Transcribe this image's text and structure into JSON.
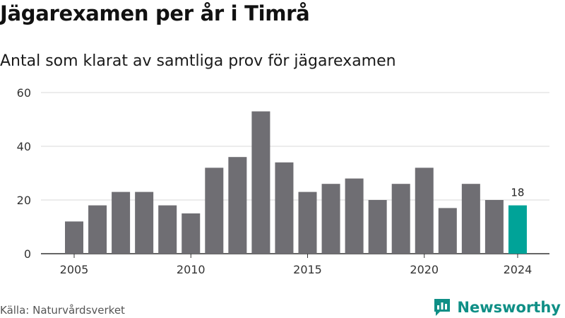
{
  "header": {
    "title": "Jägarexamen per år i Timrå",
    "subtitle": "Antal som klarat av samtliga prov för jägarexamen"
  },
  "footer": {
    "source": "Källa: Naturvårdsverket",
    "brand": "Newsworthy",
    "brand_icon": "newsworthy-logo-icon"
  },
  "colors": {
    "bar": "#6f6e73",
    "highlight": "#00a398",
    "grid": "#d9d9d9",
    "axis": "#333333",
    "brand": "#0f8f86"
  },
  "chart_data": {
    "type": "bar",
    "x": [
      2005,
      2006,
      2007,
      2008,
      2009,
      2010,
      2011,
      2012,
      2013,
      2014,
      2015,
      2016,
      2017,
      2018,
      2019,
      2020,
      2021,
      2022,
      2023,
      2024
    ],
    "values": [
      12,
      18,
      23,
      23,
      18,
      15,
      32,
      36,
      53,
      34,
      23,
      26,
      28,
      20,
      26,
      32,
      17,
      26,
      20,
      18
    ],
    "x_ticks": [
      2005,
      2010,
      2015,
      2020,
      2024
    ],
    "y_ticks": [
      0,
      20,
      40,
      60
    ],
    "ylim": [
      0,
      60
    ],
    "highlight_index": 19,
    "data_labels": [
      {
        "index": 19,
        "text": "18"
      }
    ],
    "grid": true,
    "legend": "none",
    "xlabel": "",
    "ylabel": ""
  }
}
